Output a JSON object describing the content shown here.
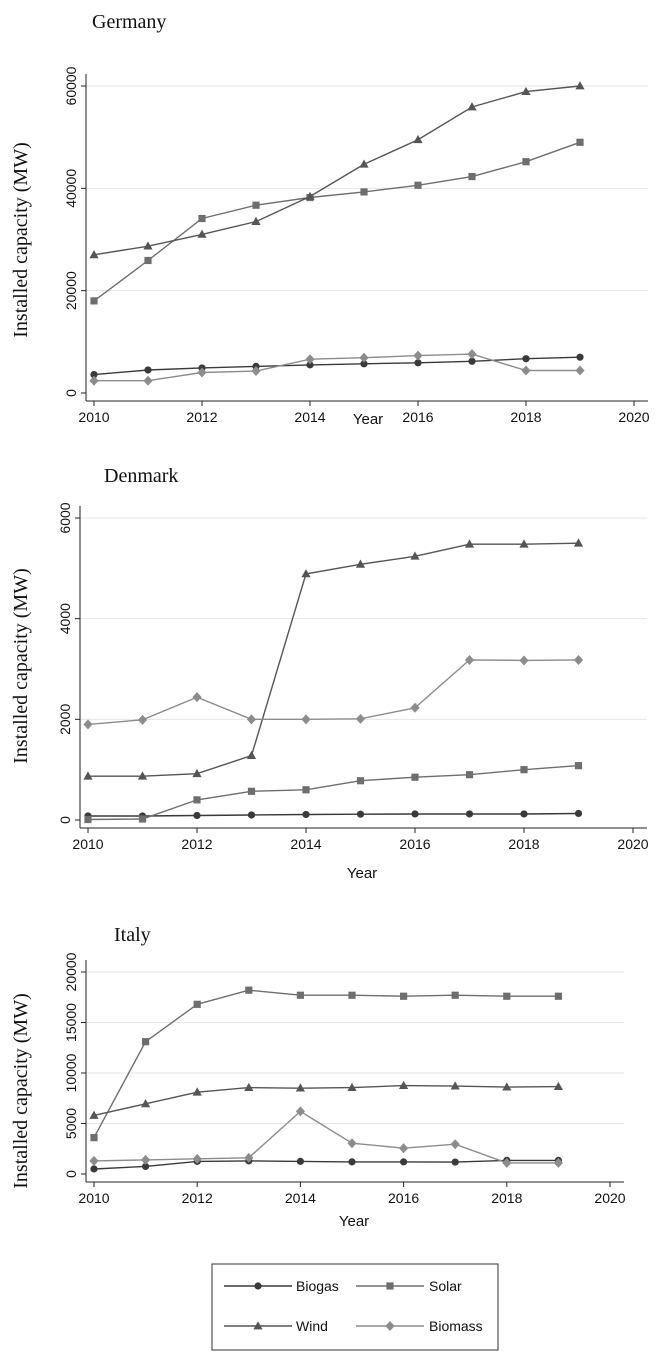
{
  "chart_data": [
    {
      "type": "line",
      "title": "Germany",
      "xlabel": "Year",
      "ylabel": "Installed capacity (MW)",
      "xlim": [
        2010,
        2020
      ],
      "ylim": [
        0,
        60000
      ],
      "xticks": [
        2010,
        2012,
        2014,
        2016,
        2018,
        2020
      ],
      "yticks": [
        0,
        20000,
        40000,
        60000
      ],
      "grid": "horizontal",
      "x": [
        2010,
        2011,
        2012,
        2013,
        2014,
        2015,
        2016,
        2017,
        2018,
        2019
      ],
      "series": [
        {
          "name": "Biogas",
          "marker": "circle",
          "color": "#3a3a3a",
          "values": [
            3600,
            4500,
            4900,
            5200,
            5500,
            5700,
            5900,
            6200,
            6700,
            7000
          ]
        },
        {
          "name": "Solar",
          "marker": "square",
          "color": "#6e6e6e",
          "values": [
            18000,
            25900,
            34100,
            36700,
            38200,
            39300,
            40600,
            42300,
            45200,
            49000
          ]
        },
        {
          "name": "Wind",
          "marker": "triangle",
          "color": "#555555",
          "values": [
            27000,
            28700,
            31000,
            33500,
            38400,
            44700,
            49500,
            55900,
            58900,
            60000
          ]
        },
        {
          "name": "Biomass",
          "marker": "diamond",
          "color": "#8c8c8c",
          "values": [
            2400,
            2400,
            4000,
            4300,
            6600,
            6900,
            7300,
            7600,
            4400,
            4400
          ]
        }
      ]
    },
    {
      "type": "line",
      "title": "Denmark",
      "xlabel": "Year",
      "ylabel": "Installed capacity (MW)",
      "xlim": [
        2010,
        2020
      ],
      "ylim": [
        0,
        6000
      ],
      "xticks": [
        2010,
        2012,
        2014,
        2016,
        2018,
        2020
      ],
      "yticks": [
        0,
        2000,
        4000,
        6000
      ],
      "grid": "horizontal",
      "x": [
        2010,
        2011,
        2012,
        2013,
        2014,
        2015,
        2016,
        2017,
        2018,
        2019
      ],
      "series": [
        {
          "name": "Biogas",
          "marker": "circle",
          "color": "#3a3a3a",
          "values": [
            80,
            80,
            90,
            100,
            110,
            115,
            120,
            120,
            120,
            130
          ]
        },
        {
          "name": "Solar",
          "marker": "square",
          "color": "#6e6e6e",
          "values": [
            10,
            20,
            400,
            570,
            600,
            780,
            850,
            900,
            1000,
            1080
          ]
        },
        {
          "name": "Wind",
          "marker": "triangle",
          "color": "#555555",
          "values": [
            870,
            870,
            920,
            1280,
            4890,
            5080,
            5240,
            5480,
            5480,
            5500
          ]
        },
        {
          "name": "Biomass",
          "marker": "diamond",
          "color": "#8c8c8c",
          "values": [
            1900,
            1990,
            2440,
            2000,
            2000,
            2010,
            2230,
            3180,
            3170,
            3180
          ]
        }
      ]
    },
    {
      "type": "line",
      "title": "Italy",
      "xlabel": "Year",
      "ylabel": "Installed capacity (MW)",
      "xlim": [
        2010,
        2020
      ],
      "ylim": [
        0,
        20000
      ],
      "xticks": [
        2010,
        2012,
        2014,
        2016,
        2018,
        2020
      ],
      "yticks": [
        0,
        5000,
        10000,
        15000,
        20000
      ],
      "grid": "horizontal",
      "x": [
        2010,
        2011,
        2012,
        2013,
        2014,
        2015,
        2016,
        2017,
        2018,
        2019
      ],
      "series": [
        {
          "name": "Biogas",
          "marker": "circle",
          "color": "#3a3a3a",
          "values": [
            500,
            750,
            1250,
            1300,
            1250,
            1200,
            1200,
            1180,
            1350,
            1350
          ]
        },
        {
          "name": "Solar",
          "marker": "square",
          "color": "#6e6e6e",
          "values": [
            3600,
            13100,
            16800,
            18200,
            17700,
            17700,
            17600,
            17700,
            17600,
            17600
          ]
        },
        {
          "name": "Wind",
          "marker": "triangle",
          "color": "#555555",
          "values": [
            5800,
            6950,
            8100,
            8550,
            8500,
            8550,
            8750,
            8700,
            8600,
            8650
          ]
        },
        {
          "name": "Biomass",
          "marker": "diamond",
          "color": "#8c8c8c",
          "values": [
            1300,
            1400,
            1500,
            1600,
            6200,
            3050,
            2550,
            2950,
            1100,
            1100
          ]
        }
      ]
    }
  ],
  "legend": {
    "placement": "bottom",
    "items": [
      {
        "label": "Biogas",
        "marker": "circle",
        "color": "#3a3a3a"
      },
      {
        "label": "Solar",
        "marker": "square",
        "color": "#6e6e6e"
      },
      {
        "label": "Wind",
        "marker": "triangle",
        "color": "#555555"
      },
      {
        "label": "Biomass",
        "marker": "diamond",
        "color": "#8c8c8c"
      }
    ]
  }
}
